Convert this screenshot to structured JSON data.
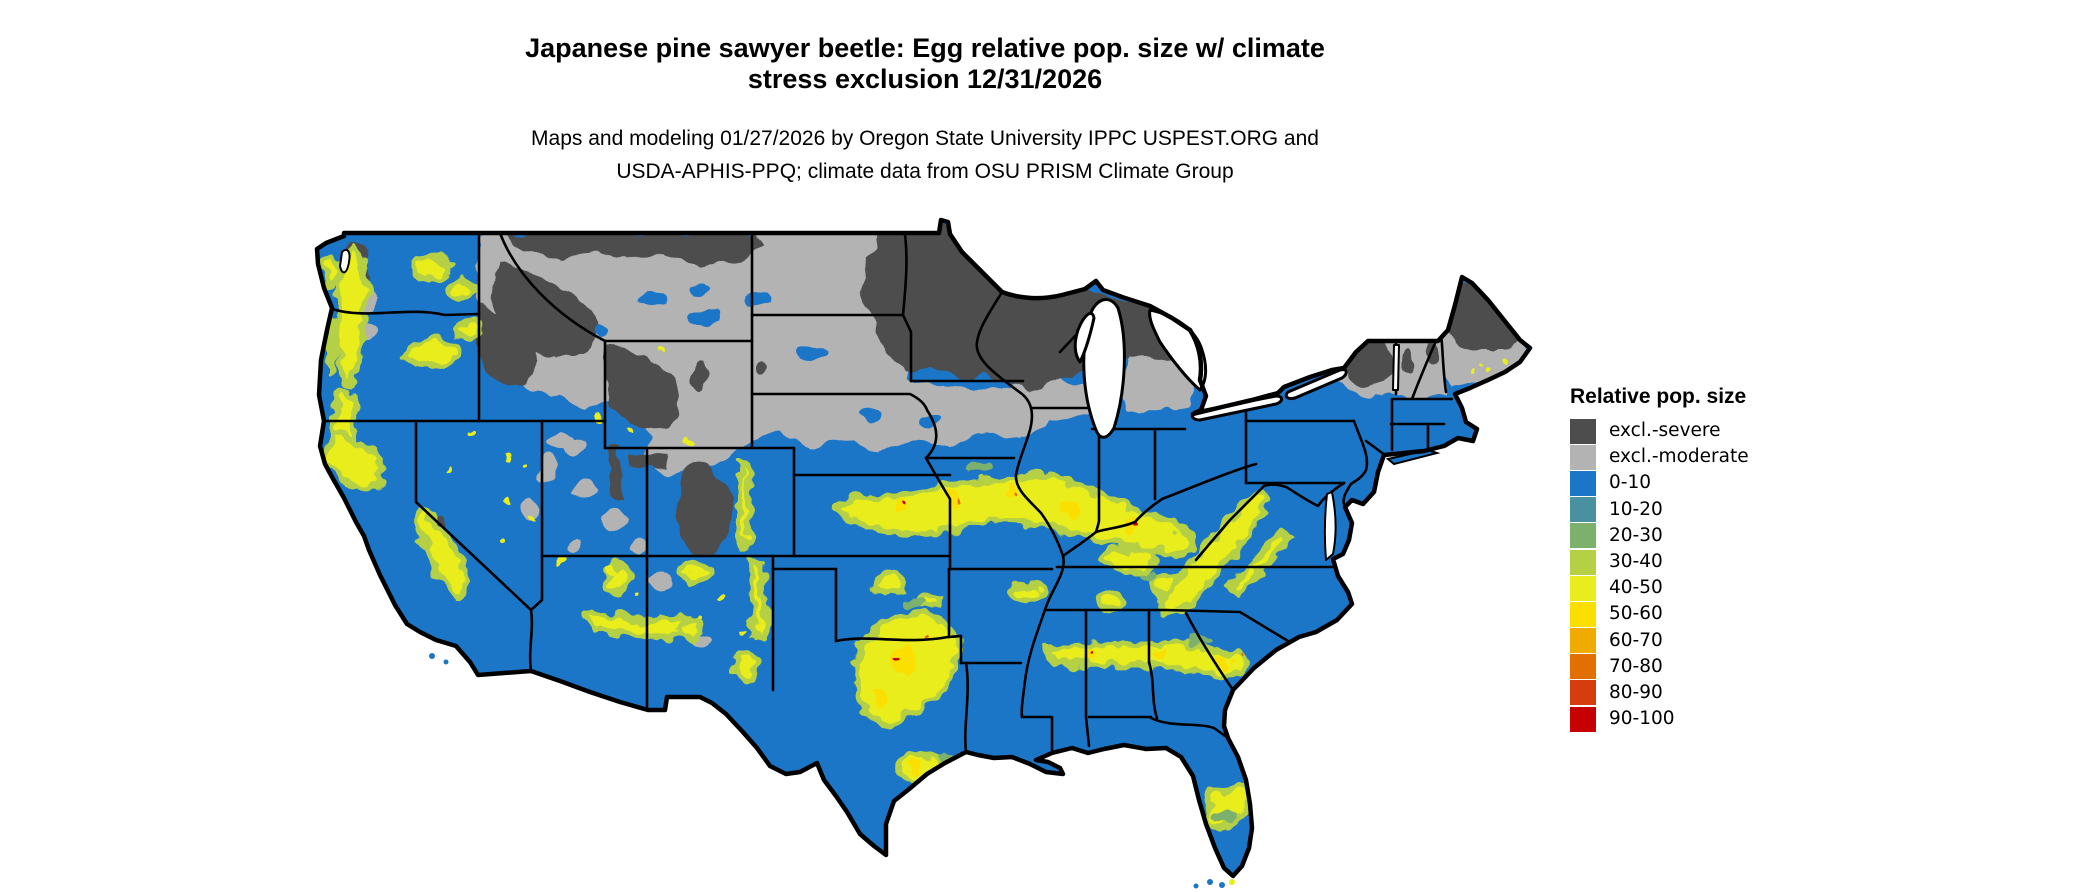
{
  "title": {
    "line1": "Japanese pine sawyer beetle: Egg relative pop. size w/ climate",
    "line2": "stress exclusion 12/31/2026"
  },
  "subtitle": {
    "line1": "Maps and modeling 01/27/2026 by Oregon State University IPPC USPEST.ORG and",
    "line2": "USDA-APHIS-PPQ; climate data from OSU PRISM Climate Group"
  },
  "legend": {
    "title": "Relative pop. size",
    "items": [
      {
        "label": "excl.-severe",
        "color": "#4d4d4d"
      },
      {
        "label": "excl.-moderate",
        "color": "#b3b3b3"
      },
      {
        "label": "0-10",
        "color": "#1c76c8"
      },
      {
        "label": "10-20",
        "color": "#4a91a0"
      },
      {
        "label": "20-30",
        "color": "#7bb06d"
      },
      {
        "label": "30-40",
        "color": "#b5d044"
      },
      {
        "label": "40-50",
        "color": "#e9ed1d"
      },
      {
        "label": "50-60",
        "color": "#fbdf00"
      },
      {
        "label": "60-70",
        "color": "#f0ab00"
      },
      {
        "label": "70-80",
        "color": "#e17000"
      },
      {
        "label": "80-90",
        "color": "#d63d0e"
      },
      {
        "label": "90-100",
        "color": "#c60000"
      }
    ]
  },
  "map": {
    "region": "Continental United States",
    "background_color": "#ffffff",
    "state_border_color": "#000000",
    "water_color": "#ffffff"
  }
}
